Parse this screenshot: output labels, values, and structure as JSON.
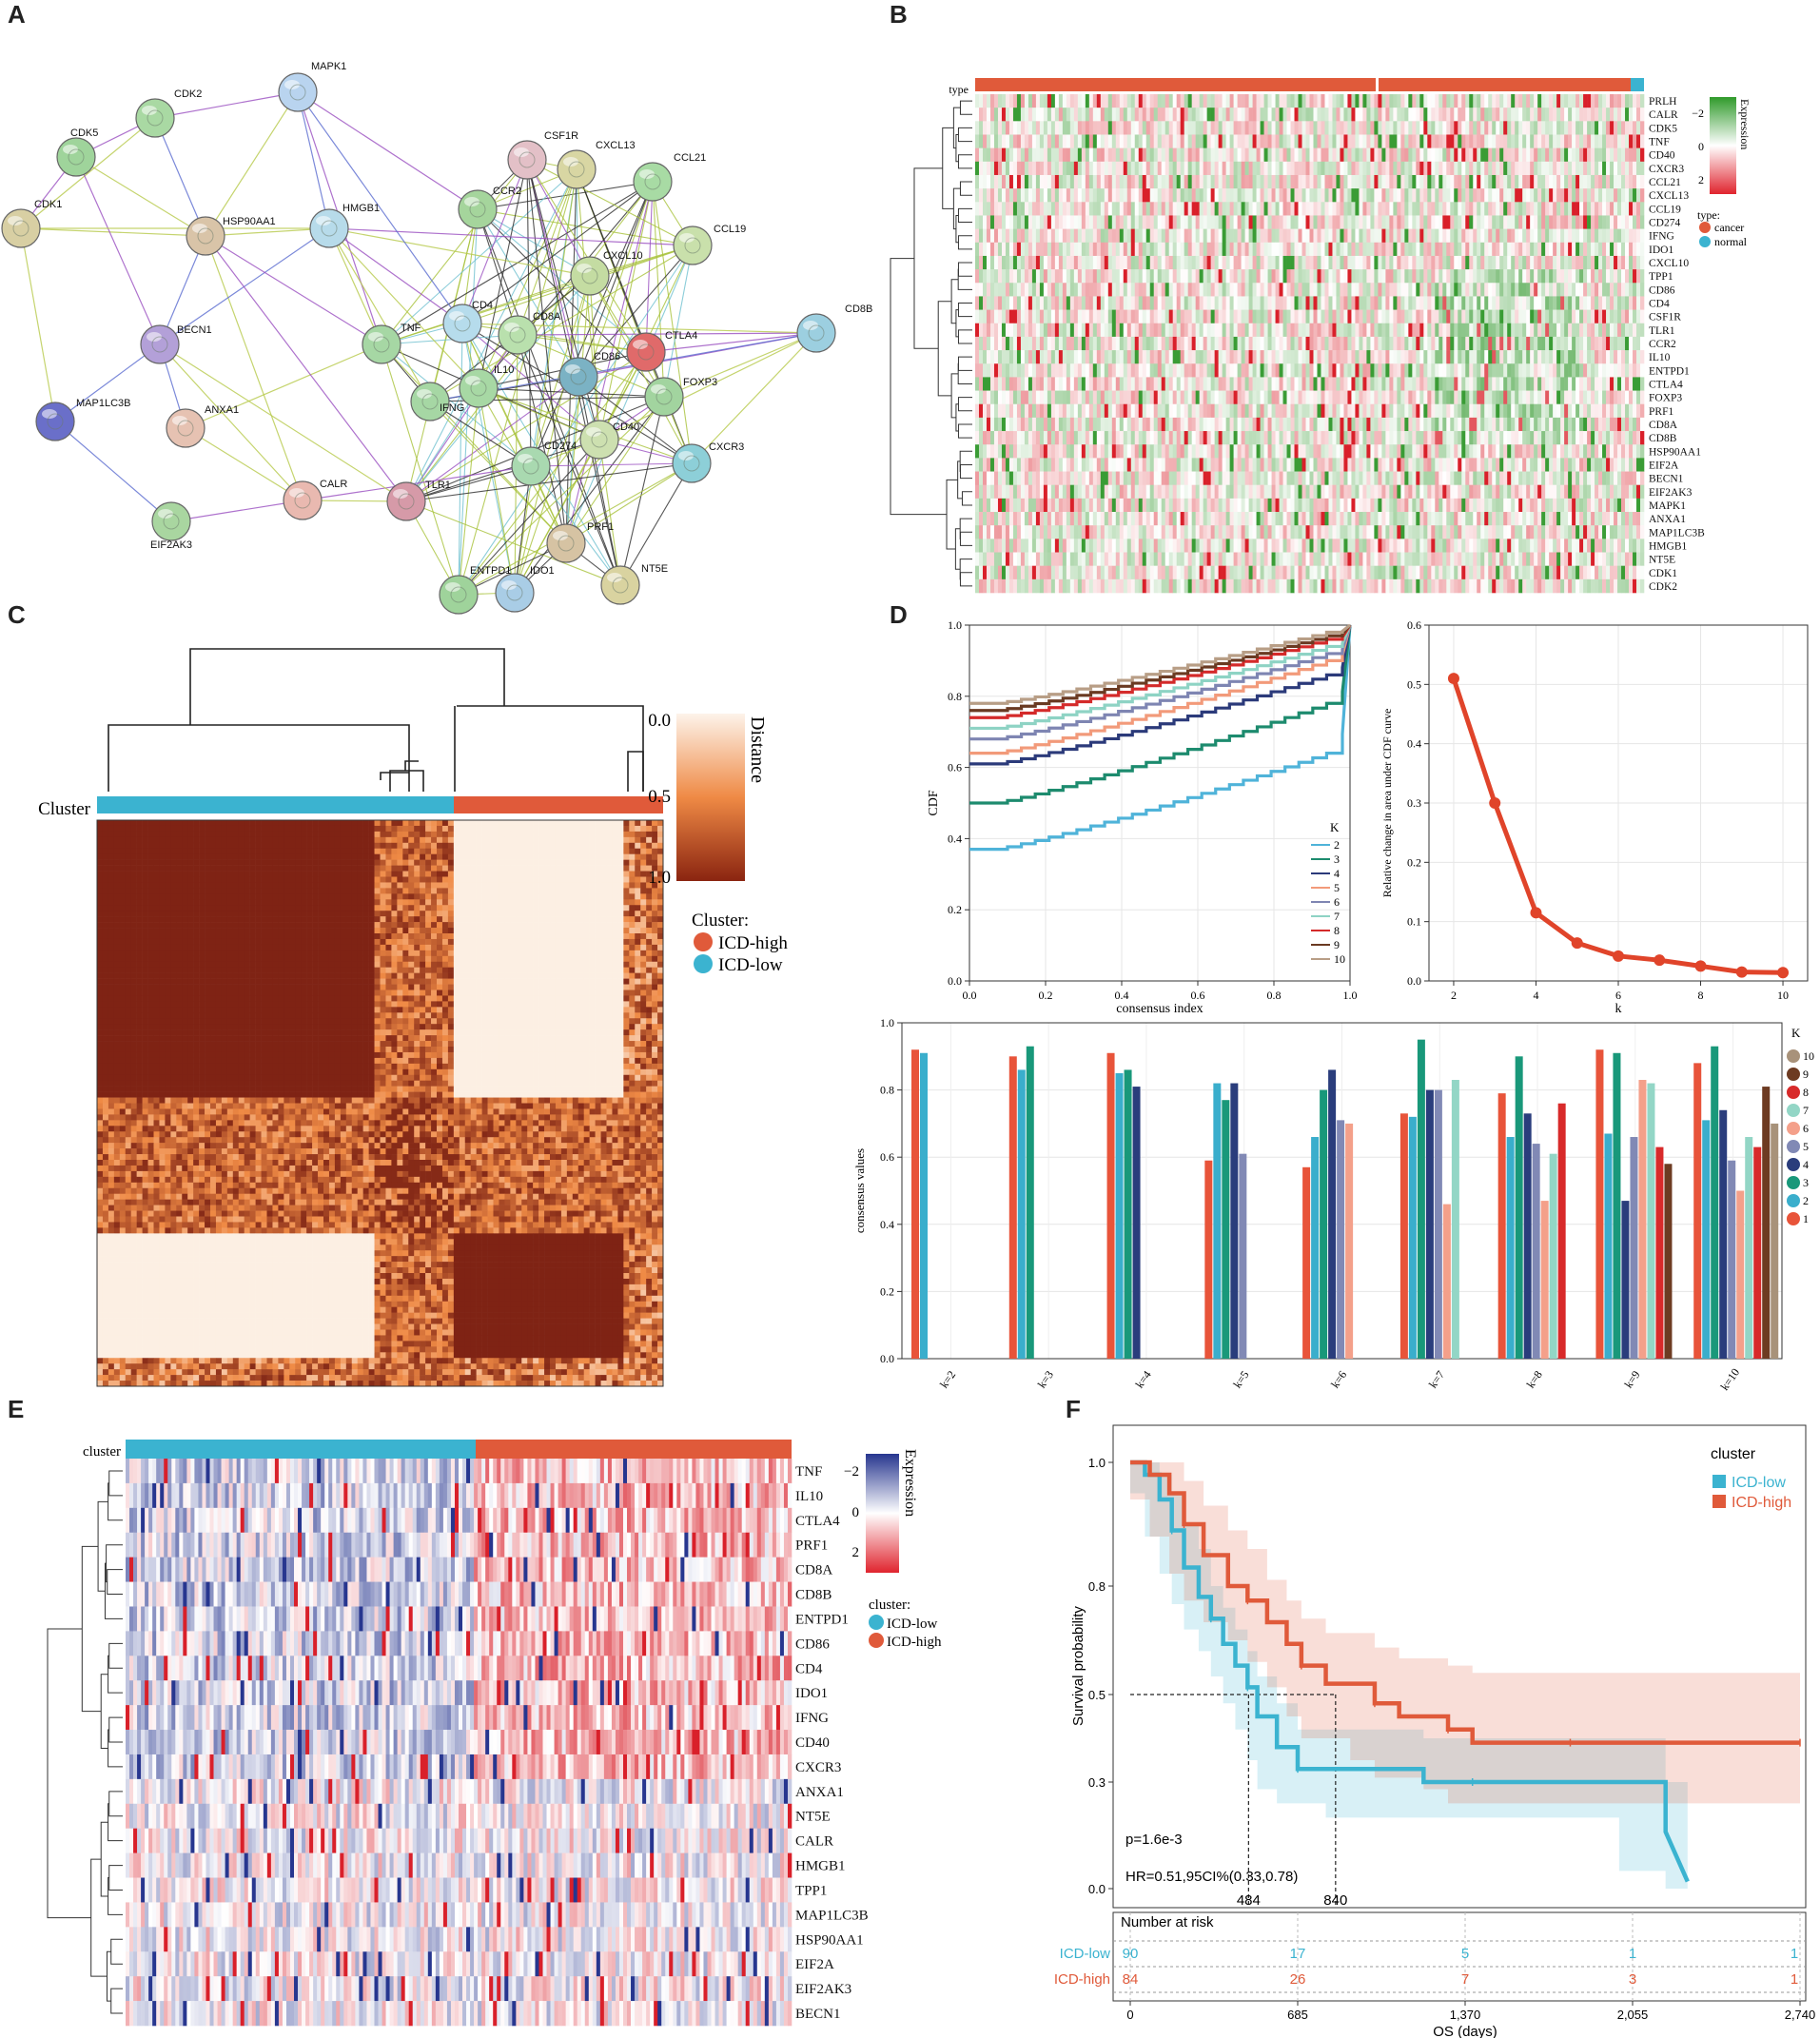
{
  "panel_labels": [
    "A",
    "B",
    "C",
    "D",
    "E",
    "F"
  ],
  "colors": {
    "cancer": "#e05a3a",
    "normal": "#3bb3d0",
    "icd_high": "#e05a3a",
    "icd_low": "#3bb3d0",
    "dist_dark": "#7a1f12",
    "dist_light": "#fdf3ea",
    "heat_green": "#3a9c35",
    "heat_red": "#d9202a",
    "heat_blue": "#27368f"
  },
  "panel_a": {
    "nodes": [
      "MAPK1",
      "CDK2",
      "CDK5",
      "CDK1",
      "HSP90AA1",
      "HMGB1",
      "BECN1",
      "MAP1LC3B",
      "ANXA1",
      "EIF2AK3",
      "CALR",
      "CSF1R",
      "CXCL13",
      "CCL21",
      "CCR2",
      "CCL19",
      "CXCL10",
      "CD4",
      "TNF",
      "CD8A",
      "CTLA4",
      "CD8B",
      "CD86",
      "IL10",
      "IFNG",
      "FOXP3",
      "CD40",
      "CD274",
      "CXCR3",
      "TLR1",
      "PRF1",
      "ENTPD1",
      "IDO1",
      "NT5E"
    ]
  },
  "panel_b": {
    "type_label": "type",
    "genes": [
      "PRLH",
      "CALR",
      "CDK5",
      "TNF",
      "CD40",
      "CXCR3",
      "CCL21",
      "CXCL13",
      "CCL19",
      "CD274",
      "IFNG",
      "IDO1",
      "CXCL10",
      "TPP1",
      "CD86",
      "CD4",
      "CSF1R",
      "TLR1",
      "CCR2",
      "IL10",
      "ENTPD1",
      "CTLA4",
      "FOXP3",
      "PRF1",
      "CD8A",
      "CD8B",
      "HSP90AA1",
      "EIF2A",
      "BECN1",
      "EIF2AK3",
      "MAPK1",
      "ANXA1",
      "MAP1LC3B",
      "HMGB1",
      "NT5E",
      "CDK1",
      "CDK2"
    ],
    "legend_title": "Expression",
    "legend_ticks": [
      "−2",
      "0",
      "2"
    ],
    "type_legend_title": "type:",
    "type_legend": [
      "cancer",
      "normal"
    ]
  },
  "panel_c": {
    "cluster_label": "Cluster",
    "legend_title": "Distance",
    "legend_ticks": [
      "0.0",
      "0.5",
      "1.0"
    ],
    "cluster_legend_title": "Cluster:",
    "cluster_legend": [
      "ICD-high",
      "ICD-low"
    ]
  },
  "panel_e": {
    "cluster_label": "cluster",
    "genes": [
      "TNF",
      "IL10",
      "CTLA4",
      "PRF1",
      "CD8A",
      "CD8B",
      "ENTPD1",
      "CD86",
      "CD4",
      "IDO1",
      "IFNG",
      "CD40",
      "CXCR3",
      "ANXA1",
      "NT5E",
      "CALR",
      "HMGB1",
      "TPP1",
      "MAP1LC3B",
      "HSP90AA1",
      "EIF2A",
      "EIF2AK3",
      "BECN1"
    ],
    "legend_title": "Expression",
    "legend_ticks": [
      "−2",
      "0",
      "2"
    ],
    "cluster_legend_title": "cluster:",
    "cluster_legend": [
      "ICD-low",
      "ICD-high"
    ]
  },
  "risk_table": {
    "title": "Number at risk",
    "rows": [
      {
        "group": "ICD-low",
        "values": [
          "90",
          "17",
          "5",
          "1",
          "1"
        ]
      },
      {
        "group": "ICD-high",
        "values": [
          "84",
          "26",
          "7",
          "3",
          "1"
        ]
      }
    ]
  },
  "chart_data": [
    {
      "id": "cdf",
      "type": "line",
      "xlabel": "consensus index",
      "ylabel": "CDF",
      "xlim": [
        0,
        1
      ],
      "ylim": [
        0,
        1
      ],
      "xticks": [
        "0.0",
        "0.2",
        "0.4",
        "0.6",
        "0.8",
        "1.0"
      ],
      "yticks": [
        "0.0",
        "0.2",
        "0.4",
        "0.6",
        "0.8",
        "1.0"
      ],
      "legend_title": "K",
      "series": [
        {
          "name": "2",
          "color": "#4fb3d9",
          "start": 0.37,
          "end": 0.64
        },
        {
          "name": "3",
          "color": "#1d8b6e",
          "start": 0.5,
          "end": 0.78
        },
        {
          "name": "4",
          "color": "#2b3a7a",
          "start": 0.61,
          "end": 0.86
        },
        {
          "name": "5",
          "color": "#f29a7a",
          "start": 0.64,
          "end": 0.9
        },
        {
          "name": "6",
          "color": "#7e85b2",
          "start": 0.68,
          "end": 0.92
        },
        {
          "name": "7",
          "color": "#8ed3c4",
          "start": 0.71,
          "end": 0.94
        },
        {
          "name": "8",
          "color": "#d42a2a",
          "start": 0.74,
          "end": 0.96
        },
        {
          "name": "9",
          "color": "#6a3a22",
          "start": 0.76,
          "end": 0.97
        },
        {
          "name": "10",
          "color": "#b89e86",
          "start": 0.78,
          "end": 0.98
        }
      ]
    },
    {
      "id": "delta",
      "type": "line",
      "xlabel": "k",
      "ylabel": "Relative change in area under CDF curve",
      "x": [
        2,
        3,
        4,
        5,
        6,
        7,
        8,
        9,
        10
      ],
      "values": [
        0.51,
        0.3,
        0.115,
        0.064,
        0.042,
        0.035,
        0.025,
        0.015,
        0.014
      ],
      "xlim": [
        1.4,
        10.6
      ],
      "ylim": [
        0,
        0.6
      ],
      "xticks": [
        "2",
        "4",
        "6",
        "8",
        "10"
      ],
      "yticks": [
        "0.0",
        "0.1",
        "0.2",
        "0.3",
        "0.4",
        "0.5",
        "0.6"
      ]
    },
    {
      "id": "consensus",
      "type": "bar",
      "ylabel": "consensus values",
      "categories": [
        "k=2",
        "k=3",
        "k=4",
        "k=5",
        "k=6",
        "k=7",
        "k=8",
        "k=9",
        "k=10"
      ],
      "ylim": [
        0,
        1
      ],
      "yticks": [
        "0.0",
        "0.2",
        "0.4",
        "0.6",
        "0.8",
        "1.0"
      ],
      "legend_title": "K",
      "legend": [
        "10",
        "9",
        "8",
        "7",
        "6",
        "5",
        "4",
        "3",
        "2",
        "1"
      ],
      "cluster_colors": [
        "#e8543a",
        "#3aaecc",
        "#19987a",
        "#2a3d7c",
        "#8189b5",
        "#f4a08a",
        "#93d6c6",
        "#d82a2a",
        "#6d3b22",
        "#a8927a"
      ],
      "values": [
        [
          0.92,
          0.91
        ],
        [
          0.9,
          0.86,
          0.93
        ],
        [
          0.91,
          0.85,
          0.86,
          0.81
        ],
        [
          0.59,
          0.82,
          0.77,
          0.82,
          0.61
        ],
        [
          0.57,
          0.66,
          0.8,
          0.86,
          0.71,
          0.7
        ],
        [
          0.73,
          0.72,
          0.95,
          0.8,
          0.8,
          0.46,
          0.83
        ],
        [
          0.79,
          0.66,
          0.9,
          0.73,
          0.64,
          0.47,
          0.61,
          0.76
        ],
        [
          0.92,
          0.67,
          0.91,
          0.47,
          0.66,
          0.83,
          0.82,
          0.63,
          0.58
        ],
        [
          0.88,
          0.71,
          0.93,
          0.74,
          0.59,
          0.5,
          0.66,
          0.63,
          0.81,
          0.7
        ]
      ]
    },
    {
      "id": "survival",
      "type": "line",
      "xlabel": "OS (days)",
      "ylabel": "Survival probability",
      "xticks": [
        "0",
        "685",
        "1,370",
        "2,055",
        "2,740"
      ],
      "yticks": [
        "0.0",
        "0.3",
        "0.5",
        "0.8",
        "1.0"
      ],
      "xlim": [
        0,
        2740
      ],
      "ylim": [
        0,
        1
      ],
      "legend_title": "cluster",
      "pvalue": "p=1.6e-3",
      "hr": "HR=0.51,95CI%(0.33,0.78)",
      "median_labels": [
        "484",
        "840"
      ],
      "medians": [
        484,
        840
      ],
      "series": [
        {
          "name": "ICD-low",
          "color": "#3bb3d0",
          "x": [
            0,
            60,
            120,
            170,
            220,
            280,
            330,
            380,
            430,
            480,
            520,
            600,
            685,
            800,
            1200,
            1400,
            1800,
            2000,
            2190,
            2280
          ],
          "y": [
            1.0,
            0.98,
            0.94,
            0.89,
            0.83,
            0.77,
            0.71,
            0.64,
            0.58,
            0.52,
            0.45,
            0.38,
            0.33,
            0.33,
            0.3,
            0.3,
            0.3,
            0.3,
            0.16,
            0.02
          ]
        },
        {
          "name": "ICD-high",
          "color": "#e05a3a",
          "x": [
            0,
            80,
            160,
            220,
            300,
            400,
            480,
            560,
            640,
            700,
            800,
            900,
            1000,
            1100,
            1200,
            1300,
            1400,
            1600,
            1800,
            2000,
            2100,
            2740
          ],
          "y": [
            1.0,
            0.98,
            0.95,
            0.9,
            0.85,
            0.8,
            0.76,
            0.7,
            0.64,
            0.58,
            0.53,
            0.53,
            0.48,
            0.45,
            0.45,
            0.42,
            0.39,
            0.39,
            0.39,
            0.39,
            0.39,
            0.39
          ]
        }
      ]
    }
  ]
}
